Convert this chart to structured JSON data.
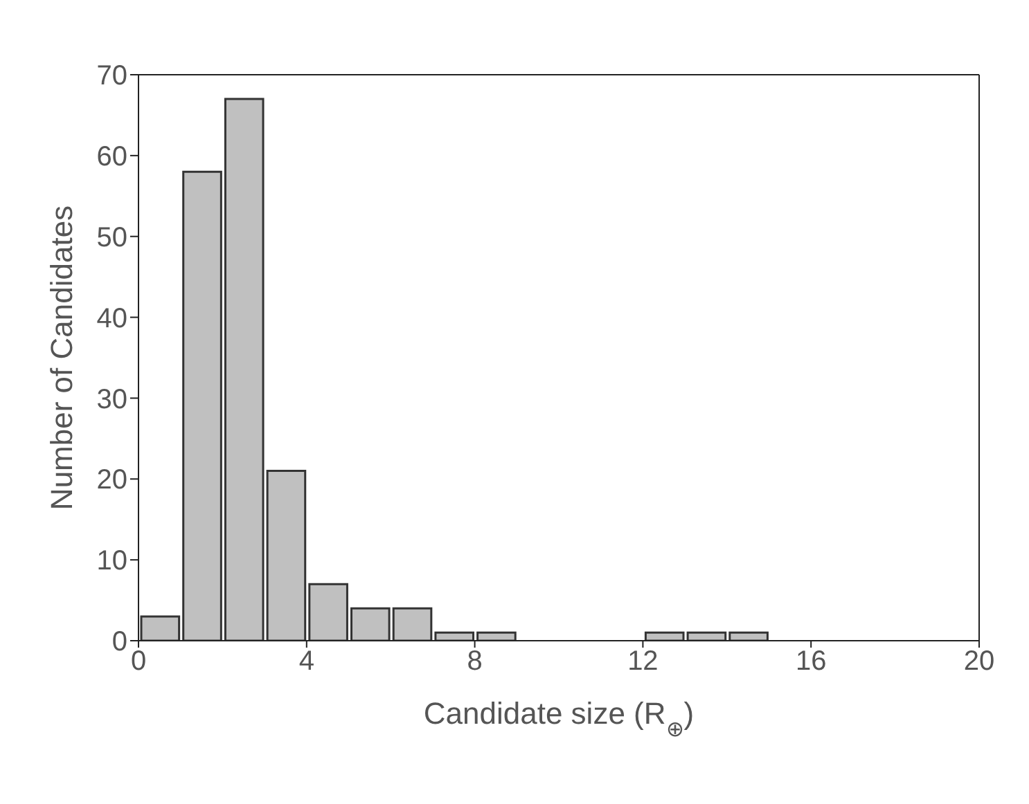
{
  "chart_data": {
    "type": "histogram",
    "xlabel": "Candidate size (R$_{⊕}$)",
    "ylabel": "Number of Candidates",
    "bins": [
      0,
      1,
      2,
      3,
      4,
      5,
      6,
      7,
      8,
      9,
      10,
      11,
      12,
      13,
      14,
      15,
      16,
      17,
      18,
      19,
      20
    ],
    "values": [
      3,
      58,
      67,
      21,
      7,
      4,
      4,
      1,
      1,
      0,
      0,
      0,
      1,
      1,
      1,
      0,
      0,
      0,
      0,
      0
    ],
    "color": "#c0c0c0",
    "xlim": [
      0,
      20
    ],
    "xticks": [
      0,
      4,
      8,
      12,
      16,
      20
    ],
    "ylim": [
      0,
      70
    ],
    "yticks": [
      0,
      10,
      20,
      30,
      40,
      50,
      60,
      70
    ],
    "grid": false,
    "legend": false
  }
}
